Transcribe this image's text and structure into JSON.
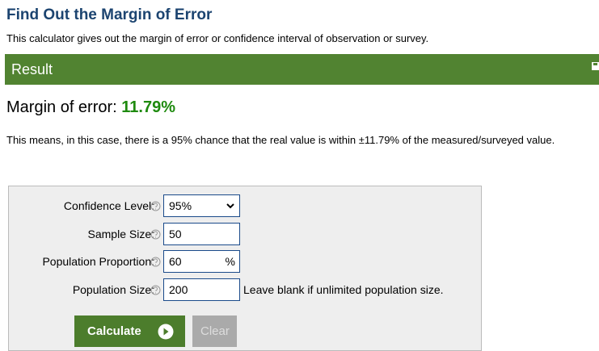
{
  "header": {
    "title": "Find Out the Margin of Error",
    "description": "This calculator gives out the margin of error or confidence interval of observation or survey."
  },
  "result": {
    "heading": "Result",
    "label": "Margin of error:",
    "value": "11.79%",
    "explanation": "This means, in this case, there is a 95% chance that the real value is within ±11.79% of the measured/surveyed value."
  },
  "form": {
    "fields": [
      {
        "label": "Confidence Level:",
        "value": "95%"
      },
      {
        "label": "Sample Size:",
        "value": "50"
      },
      {
        "label": "Population Proportion:",
        "value": "60",
        "unit": "%"
      },
      {
        "label": "Population Size:",
        "value": "200",
        "note": "Leave blank if unlimited population size."
      }
    ],
    "buttons": {
      "calculate": "Calculate",
      "clear": "Clear"
    }
  }
}
